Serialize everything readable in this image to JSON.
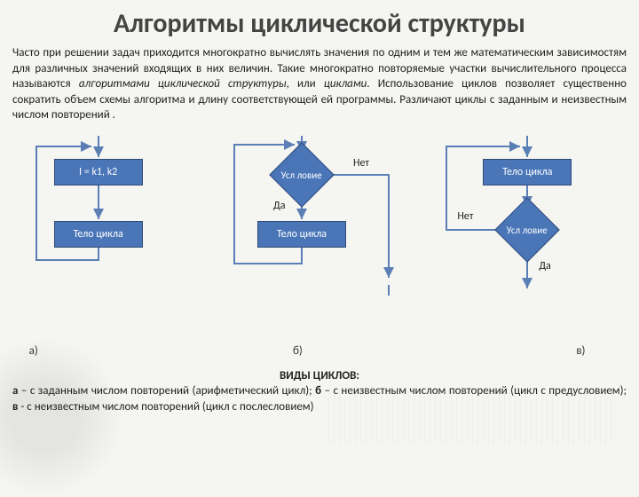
{
  "title": "Алгоритмы циклической структуры",
  "intro_html": "Часто при решении задач приходится многократно вычислять значения по одним и тем же математическим зависимостям для различных значений входящих в них величин. Такие многократно повторяемые участки вычислительного процесса называются <em>алгоритмами циклической структуры</em>, или <em>циклами</em>. Использование циклов позволяет существенно сократить объем схемы алгоритма и длину соответствующей ей программы. Различают циклы с заданным и неизвестным числом повторений .",
  "colors": {
    "node_fill": "#4a76b8",
    "node_border": "#2f4a78",
    "line": "#5b7fb5"
  },
  "a": {
    "caption": "а)",
    "n1": "I = k1, k2",
    "n2": "Тело цикла"
  },
  "b": {
    "caption": "б)",
    "cond": "Усл ловие",
    "body": "Тело цикла",
    "yes": "Да",
    "no": "Нет"
  },
  "c": {
    "caption": "в)",
    "body": "Тело цикла",
    "cond": "Усл ловие",
    "yes": "Да",
    "no": "Нет"
  },
  "footer_title": "ВИДЫ ЦИКЛОВ:",
  "footer_html": "<b>а</b> – с заданным числом повторений (арифметический цикл); <b>б</b> – с неизвестным числом повторений (цикл с предусловием); <b>в</b> - с неизвестным числом повторений (цикл с послесловием)"
}
